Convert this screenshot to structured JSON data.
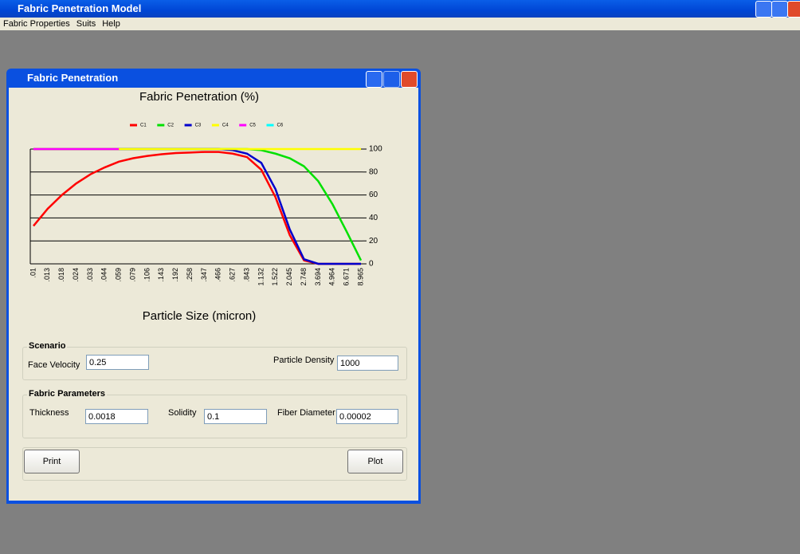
{
  "app": {
    "title": "Fabric Penetration Model",
    "menu": [
      "Fabric Properties",
      "Suits",
      "Help"
    ]
  },
  "window": {
    "title": "Fabric Penetration"
  },
  "chart_data": {
    "type": "line",
    "title": "Fabric Penetration (%)",
    "x_label": "Particle Size (micron)",
    "categories": [
      ".01",
      ".013",
      ".018",
      ".024",
      ".033",
      ".044",
      ".059",
      ".079",
      ".106",
      ".143",
      ".192",
      ".258",
      ".347",
      ".466",
      ".627",
      ".843",
      "1.132",
      "1.522",
      "2.045",
      "2.748",
      "3.694",
      "4.964",
      "6.671",
      "8.965"
    ],
    "series": [
      {
        "name": "C1",
        "color": "#ff0000",
        "values": [
          33,
          48,
          60,
          70,
          78,
          84,
          89,
          92,
          94,
          95.5,
          96.5,
          97,
          97.5,
          97.5,
          96,
          93,
          82,
          58,
          25,
          3,
          0,
          0,
          0,
          0
        ]
      },
      {
        "name": "C2",
        "color": "#00e000",
        "values": [
          100,
          100,
          100,
          100,
          100,
          100,
          100,
          100,
          100,
          100,
          100,
          100,
          100,
          100,
          100,
          100,
          99,
          96,
          92,
          85,
          72,
          52,
          28,
          3
        ]
      },
      {
        "name": "C3",
        "color": "#0000cc",
        "values": [
          100,
          100,
          100,
          100,
          100,
          100,
          100,
          100,
          100,
          100,
          100,
          100,
          100,
          100,
          99,
          96,
          88,
          65,
          30,
          4,
          0,
          0,
          0,
          0
        ]
      },
      {
        "name": "C4",
        "color": "#ffff00",
        "values": [
          100,
          100,
          100,
          100,
          100,
          100,
          100,
          100,
          100,
          100,
          100,
          100,
          100,
          100,
          100,
          100,
          100,
          100,
          100,
          100,
          100,
          100,
          100,
          100
        ]
      },
      {
        "name": "C5",
        "color": "#ff00ff",
        "values": [
          100,
          100,
          100,
          100,
          100,
          100,
          100,
          null,
          null,
          null,
          null,
          null,
          null,
          null,
          null,
          null,
          null,
          null,
          null,
          null,
          null,
          null,
          null,
          null
        ]
      },
      {
        "name": "C6",
        "color": "#00ffff",
        "values": [
          null,
          null,
          null,
          null,
          null,
          null,
          null,
          null,
          null,
          null,
          null,
          null,
          null,
          null,
          null,
          null,
          null,
          null,
          null,
          null,
          null,
          null,
          null,
          null
        ]
      }
    ],
    "ylim": [
      0,
      100
    ],
    "yticks": [
      0,
      20,
      40,
      60,
      80,
      100
    ],
    "grid": true
  },
  "scenario": {
    "title": "Scenario",
    "fields": [
      {
        "label": "Face Velocity",
        "value": "0.25"
      },
      {
        "label": "Particle Density",
        "value": "1000"
      }
    ]
  },
  "fabric": {
    "title": "Fabric Parameters",
    "fields": [
      {
        "label": "Thickness",
        "value": "0.0018"
      },
      {
        "label": "Solidity",
        "value": "0.1"
      },
      {
        "label": "Fiber Diameter",
        "value": "0.00002"
      }
    ]
  },
  "buttons": [
    "Print",
    "Plot"
  ]
}
